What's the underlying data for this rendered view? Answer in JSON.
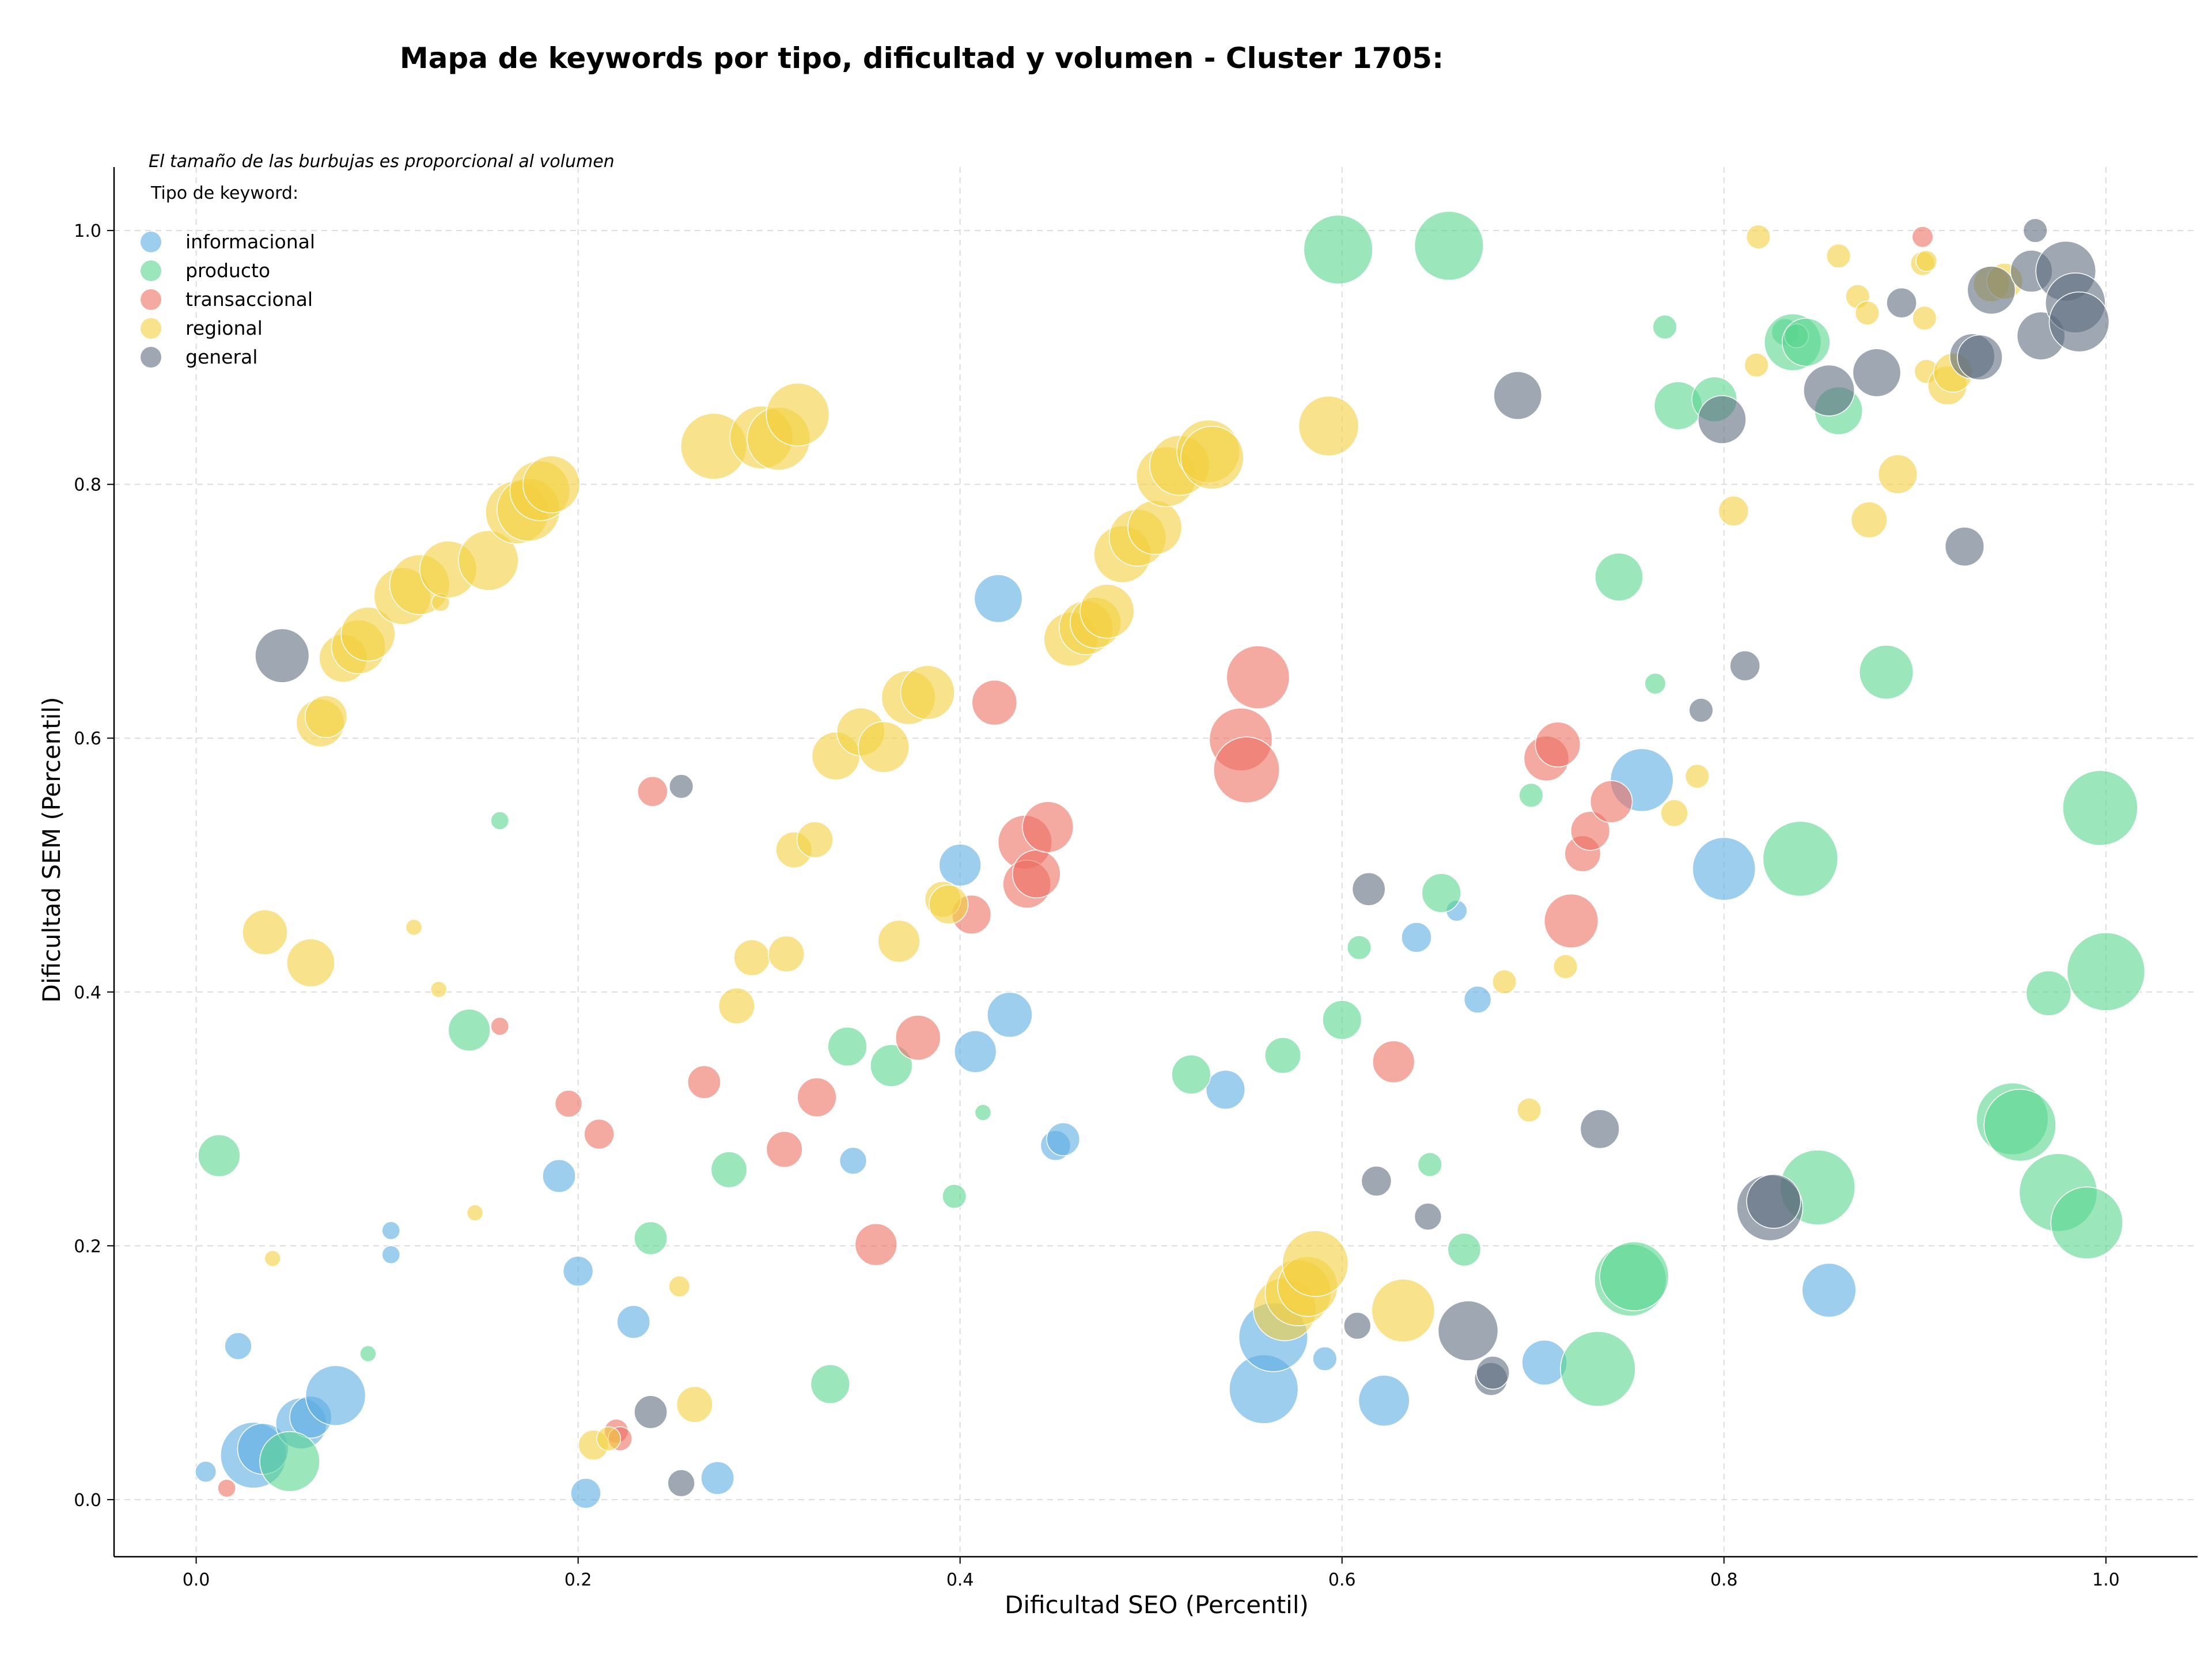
{
  "chart_data": {
    "type": "scatter",
    "title": "Mapa de keywords por tipo, dificultad y volumen - Cluster 1705:",
    "xlabel": "Dificultad SEO (Percentil)",
    "ylabel": "Dificultad SEM (Percentil)",
    "xlim": [
      -0.043,
      1.048
    ],
    "ylim": [
      -0.045,
      1.05
    ],
    "xticks": [
      "0.0",
      "0.2",
      "0.4",
      "0.6",
      "0.8",
      "1.0"
    ],
    "yticks": [
      "0.0",
      "0.2",
      "0.4",
      "0.6",
      "0.8",
      "1.0"
    ],
    "grid": true,
    "legend_placement": "top-left",
    "note": "El tamaño de las burbujas es proporcional al volumen",
    "legend_title": "Tipo de keyword:",
    "series": [
      {
        "name": "informacional",
        "color": "#5dade2",
        "points": [
          [
            0.005,
            0.022,
            0.7
          ],
          [
            0.022,
            0.121,
            0.9
          ],
          [
            0.03,
            0.035,
            2.2
          ],
          [
            0.035,
            0.04,
            1.7
          ],
          [
            0.055,
            0.06,
            1.7
          ],
          [
            0.06,
            0.065,
            1.4
          ],
          [
            0.073,
            0.082,
            2.0
          ],
          [
            0.102,
            0.212,
            0.6
          ],
          [
            0.102,
            0.193,
            0.6
          ],
          [
            0.19,
            0.255,
            1.1
          ],
          [
            0.2,
            0.18,
            1.0
          ],
          [
            0.204,
            0.005,
            1.0
          ],
          [
            0.229,
            0.14,
            1.1
          ],
          [
            0.273,
            0.017,
            1.1
          ],
          [
            0.344,
            0.267,
            0.9
          ],
          [
            0.4,
            0.5,
            1.4
          ],
          [
            0.408,
            0.353,
            1.4
          ],
          [
            0.42,
            0.71,
            1.6
          ],
          [
            0.426,
            0.382,
            1.5
          ],
          [
            0.45,
            0.279,
            1.0
          ],
          [
            0.454,
            0.284,
            1.1
          ],
          [
            0.539,
            0.323,
            1.3
          ],
          [
            0.559,
            0.087,
            2.3
          ],
          [
            0.564,
            0.128,
            2.3
          ],
          [
            0.591,
            0.111,
            0.8
          ],
          [
            0.622,
            0.078,
            1.7
          ],
          [
            0.639,
            0.443,
            1.0
          ],
          [
            0.66,
            0.464,
            0.7
          ],
          [
            0.671,
            0.394,
            0.9
          ],
          [
            0.706,
            0.108,
            1.5
          ],
          [
            0.757,
            0.567,
            2.1
          ],
          [
            0.8,
            0.497,
            2.1
          ],
          [
            0.855,
            0.165,
            1.8
          ]
        ]
      },
      {
        "name": "producto",
        "color": "#58d68d",
        "points": [
          [
            0.012,
            0.271,
            1.4
          ],
          [
            0.049,
            0.03,
            2.0
          ],
          [
            0.09,
            0.115,
            0.5
          ],
          [
            0.143,
            0.37,
            1.4
          ],
          [
            0.159,
            0.535,
            0.6
          ],
          [
            0.238,
            0.206,
            1.1
          ],
          [
            0.279,
            0.26,
            1.2
          ],
          [
            0.332,
            0.091,
            1.3
          ],
          [
            0.341,
            0.357,
            1.3
          ],
          [
            0.364,
            0.342,
            1.4
          ],
          [
            0.397,
            0.239,
            0.8
          ],
          [
            0.412,
            0.305,
            0.5
          ],
          [
            0.521,
            0.335,
            1.3
          ],
          [
            0.569,
            0.35,
            1.2
          ],
          [
            0.598,
            0.985,
            2.3
          ],
          [
            0.6,
            0.378,
            1.3
          ],
          [
            0.609,
            0.435,
            0.8
          ],
          [
            0.646,
            0.264,
            0.8
          ],
          [
            0.652,
            0.478,
            1.3
          ],
          [
            0.656,
            0.988,
            2.3
          ],
          [
            0.664,
            0.197,
            1.1
          ],
          [
            0.699,
            0.555,
            0.8
          ],
          [
            0.734,
            0.103,
            2.5
          ],
          [
            0.745,
            0.727,
            1.6
          ],
          [
            0.751,
            0.173,
            2.4
          ],
          [
            0.753,
            0.176,
            2.3
          ],
          [
            0.764,
            0.643,
            0.7
          ],
          [
            0.769,
            0.924,
            0.8
          ],
          [
            0.776,
            0.862,
            1.6
          ],
          [
            0.795,
            0.867,
            1.5
          ],
          [
            0.832,
            0.92,
            0.9
          ],
          [
            0.836,
            0.912,
            1.9
          ],
          [
            0.838,
            0.917,
            0.8
          ],
          [
            0.84,
            0.505,
            2.5
          ],
          [
            0.843,
            0.912,
            1.6
          ],
          [
            0.849,
            0.246,
            2.5
          ],
          [
            0.86,
            0.858,
            1.6
          ],
          [
            0.885,
            0.652,
            1.8
          ],
          [
            0.951,
            0.3,
            2.4
          ],
          [
            0.955,
            0.295,
            2.4
          ],
          [
            0.97,
            0.399,
            1.5
          ],
          [
            0.975,
            0.242,
            2.6
          ],
          [
            0.99,
            0.218,
            2.4
          ],
          [
            0.997,
            0.545,
            2.5
          ],
          [
            1.0,
            0.416,
            2.6
          ]
        ]
      },
      {
        "name": "transaccional",
        "color": "#ec7063",
        "points": [
          [
            0.016,
            0.009,
            0.6
          ],
          [
            0.159,
            0.373,
            0.6
          ],
          [
            0.195,
            0.312,
            0.9
          ],
          [
            0.211,
            0.288,
            1.0
          ],
          [
            0.22,
            0.054,
            0.8
          ],
          [
            0.222,
            0.048,
            0.8
          ],
          [
            0.239,
            0.558,
            1.0
          ],
          [
            0.266,
            0.329,
            1.1
          ],
          [
            0.308,
            0.276,
            1.2
          ],
          [
            0.325,
            0.317,
            1.3
          ],
          [
            0.356,
            0.201,
            1.4
          ],
          [
            0.378,
            0.364,
            1.5
          ],
          [
            0.406,
            0.461,
            1.3
          ],
          [
            0.418,
            0.628,
            1.5
          ],
          [
            0.434,
            0.518,
            1.8
          ],
          [
            0.435,
            0.485,
            1.6
          ],
          [
            0.44,
            0.493,
            1.6
          ],
          [
            0.446,
            0.53,
            1.7
          ],
          [
            0.547,
            0.599,
            2.1
          ],
          [
            0.55,
            0.575,
            2.2
          ],
          [
            0.556,
            0.648,
            2.1
          ],
          [
            0.627,
            0.345,
            1.4
          ],
          [
            0.707,
            0.584,
            1.5
          ],
          [
            0.713,
            0.595,
            1.5
          ],
          [
            0.72,
            0.456,
            1.8
          ],
          [
            0.726,
            0.509,
            1.2
          ],
          [
            0.73,
            0.527,
            1.3
          ],
          [
            0.741,
            0.55,
            1.4
          ],
          [
            0.904,
            0.995,
            0.7
          ]
        ]
      },
      {
        "name": "regional",
        "color": "#f4d03f",
        "points": [
          [
            0.04,
            0.19,
            0.4
          ],
          [
            0.036,
            0.447,
            1.5
          ],
          [
            0.06,
            0.423,
            1.6
          ],
          [
            0.065,
            0.612,
            1.6
          ],
          [
            0.068,
            0.617,
            1.4
          ],
          [
            0.077,
            0.663,
            1.6
          ],
          [
            0.085,
            0.672,
            1.8
          ],
          [
            0.09,
            0.682,
            1.8
          ],
          [
            0.108,
            0.712,
            1.9
          ],
          [
            0.114,
            0.451,
            0.5
          ],
          [
            0.117,
            0.721,
            2.0
          ],
          [
            0.127,
            0.402,
            0.5
          ],
          [
            0.128,
            0.707,
            0.6
          ],
          [
            0.132,
            0.733,
            1.9
          ],
          [
            0.146,
            0.226,
            0.5
          ],
          [
            0.153,
            0.74,
            2.0
          ],
          [
            0.168,
            0.778,
            2.1
          ],
          [
            0.174,
            0.78,
            2.1
          ],
          [
            0.18,
            0.795,
            2.0
          ],
          [
            0.186,
            0.8,
            1.9
          ],
          [
            0.208,
            0.043,
            1.0
          ],
          [
            0.216,
            0.048,
            0.8
          ],
          [
            0.253,
            0.168,
            0.7
          ],
          [
            0.261,
            0.075,
            1.2
          ],
          [
            0.271,
            0.83,
            2.2
          ],
          [
            0.283,
            0.389,
            1.2
          ],
          [
            0.291,
            0.427,
            1.2
          ],
          [
            0.296,
            0.837,
            2.1
          ],
          [
            0.305,
            0.836,
            2.1
          ],
          [
            0.309,
            0.43,
            1.2
          ],
          [
            0.313,
            0.512,
            1.2
          ],
          [
            0.315,
            0.855,
            2.1
          ],
          [
            0.324,
            0.52,
            1.2
          ],
          [
            0.335,
            0.586,
            1.6
          ],
          [
            0.348,
            0.605,
            1.6
          ],
          [
            0.36,
            0.593,
            1.7
          ],
          [
            0.368,
            0.44,
            1.4
          ],
          [
            0.373,
            0.632,
            1.8
          ],
          [
            0.383,
            0.636,
            1.8
          ],
          [
            0.391,
            0.473,
            1.2
          ],
          [
            0.394,
            0.469,
            1.3
          ],
          [
            0.458,
            0.678,
            1.8
          ],
          [
            0.466,
            0.687,
            1.8
          ],
          [
            0.471,
            0.691,
            1.7
          ],
          [
            0.477,
            0.7,
            1.8
          ],
          [
            0.485,
            0.745,
            1.9
          ],
          [
            0.493,
            0.758,
            1.9
          ],
          [
            0.502,
            0.766,
            1.8
          ],
          [
            0.508,
            0.806,
            2.0
          ],
          [
            0.515,
            0.815,
            2.0
          ],
          [
            0.53,
            0.826,
            2.1
          ],
          [
            0.532,
            0.821,
            2.1
          ],
          [
            0.57,
            0.15,
            2.1
          ],
          [
            0.577,
            0.163,
            2.2
          ],
          [
            0.582,
            0.168,
            2.0
          ],
          [
            0.586,
            0.186,
            2.2
          ],
          [
            0.593,
            0.846,
            2.0
          ],
          [
            0.632,
            0.149,
            2.1
          ],
          [
            0.685,
            0.408,
            0.8
          ],
          [
            0.698,
            0.307,
            0.8
          ],
          [
            0.717,
            0.42,
            0.8
          ],
          [
            0.774,
            0.541,
            0.9
          ],
          [
            0.786,
            0.57,
            0.8
          ],
          [
            0.805,
            0.779,
            1.0
          ],
          [
            0.817,
            0.894,
            0.8
          ],
          [
            0.818,
            0.995,
            0.8
          ],
          [
            0.86,
            0.98,
            0.8
          ],
          [
            0.87,
            0.948,
            0.8
          ],
          [
            0.875,
            0.935,
            0.8
          ],
          [
            0.876,
            0.772,
            1.2
          ],
          [
            0.891,
            0.808,
            1.3
          ],
          [
            0.904,
            0.974,
            0.8
          ],
          [
            0.905,
            0.931,
            0.8
          ],
          [
            0.906,
            0.976,
            0.7
          ],
          [
            0.906,
            0.889,
            0.8
          ],
          [
            0.917,
            0.878,
            1.3
          ],
          [
            0.92,
            0.888,
            1.3
          ],
          [
            0.94,
            0.958,
            1.2
          ],
          [
            0.947,
            0.96,
            1.2
          ]
        ]
      },
      {
        "name": "general",
        "color": "#5d6d7e",
        "points": [
          [
            0.045,
            0.665,
            1.8
          ],
          [
            0.238,
            0.069,
            1.1
          ],
          [
            0.254,
            0.013,
            0.9
          ],
          [
            0.254,
            0.562,
            0.8
          ],
          [
            0.608,
            0.137,
            0.9
          ],
          [
            0.614,
            0.481,
            1.1
          ],
          [
            0.618,
            0.251,
            1.0
          ],
          [
            0.645,
            0.223,
            0.9
          ],
          [
            0.666,
            0.133,
            2.0
          ],
          [
            0.678,
            0.095,
            1.1
          ],
          [
            0.679,
            0.1,
            1.1
          ],
          [
            0.692,
            0.87,
            1.6
          ],
          [
            0.735,
            0.292,
            1.3
          ],
          [
            0.788,
            0.622,
            0.8
          ],
          [
            0.799,
            0.851,
            1.6
          ],
          [
            0.811,
            0.657,
            1.0
          ],
          [
            0.824,
            0.23,
            2.2
          ],
          [
            0.826,
            0.235,
            1.8
          ],
          [
            0.855,
            0.874,
            1.7
          ],
          [
            0.88,
            0.888,
            1.6
          ],
          [
            0.893,
            0.943,
            1.0
          ],
          [
            0.926,
            0.751,
            1.3
          ],
          [
            0.93,
            0.901,
            1.5
          ],
          [
            0.934,
            0.9,
            1.5
          ],
          [
            0.94,
            0.953,
            1.6
          ],
          [
            0.961,
            0.968,
            1.4
          ],
          [
            0.963,
            1.0,
            0.8
          ],
          [
            0.966,
            0.917,
            1.6
          ],
          [
            0.979,
            0.968,
            2.0
          ],
          [
            0.984,
            0.943,
            2.0
          ],
          [
            0.986,
            0.928,
            2.0
          ]
        ]
      }
    ]
  }
}
